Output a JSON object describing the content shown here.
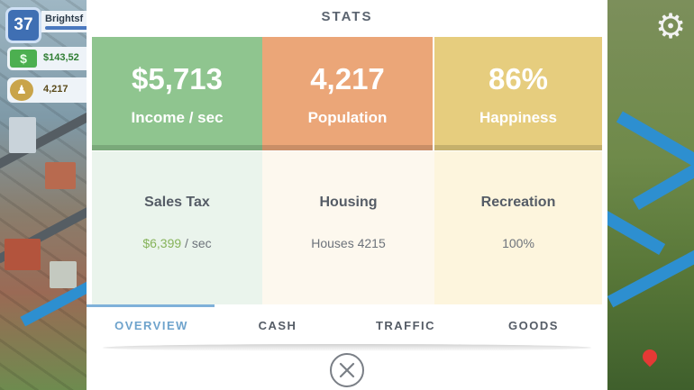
{
  "hud": {
    "level": "37",
    "city_name": "Brightsf",
    "money": "$143,52",
    "population": "4,217"
  },
  "modal": {
    "title": "STATS",
    "cards": [
      {
        "value": "$5,713",
        "label": "Income / sec",
        "color": "#8fc58f"
      },
      {
        "value": "4,217",
        "label": "Population",
        "color": "#eba678"
      },
      {
        "value": "86%",
        "label": "Happiness",
        "color": "#e6cd7e"
      }
    ],
    "details": [
      {
        "heading": "Sales Tax",
        "value": "$6,399",
        "suffix": " / sec"
      },
      {
        "heading": "Housing",
        "value": "Houses 4215"
      },
      {
        "heading": "Recreation",
        "value": "100%"
      }
    ],
    "tabs": [
      {
        "label": "OVERVIEW",
        "active": true
      },
      {
        "label": "CASH"
      },
      {
        "label": "TRAFFIC"
      },
      {
        "label": "GOODS"
      }
    ]
  },
  "icons": {
    "settings": "gear-icon",
    "close": "close-icon",
    "map_pin": "map-pin-icon"
  }
}
